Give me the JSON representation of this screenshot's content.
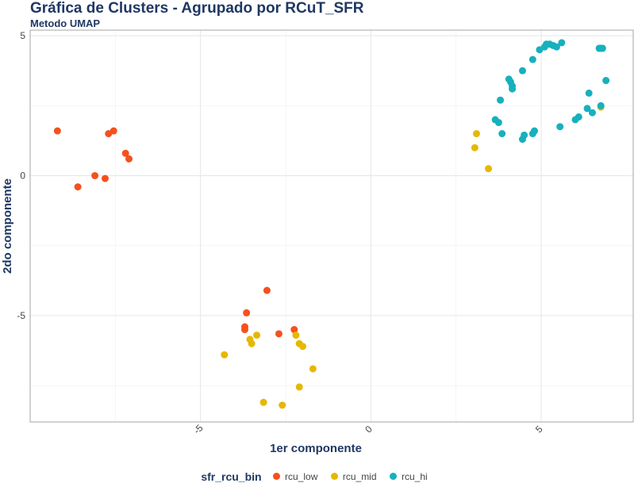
{
  "chart_data": {
    "type": "scatter",
    "title": "Gráfica de Clusters - Agrupado por RCuT_SFR",
    "subtitle": "Metodo UMAP",
    "xlabel": "1er componente",
    "ylabel": "2do componente",
    "xlim": [
      -10.0,
      7.7
    ],
    "ylim": [
      -8.8,
      5.2
    ],
    "xticks": [
      -5,
      0,
      5
    ],
    "xtick_labels": [
      "-5",
      "0",
      "5"
    ],
    "yticks": [
      -5,
      0,
      5
    ],
    "ytick_labels": [
      "-5",
      "0",
      "5"
    ],
    "grid": true,
    "legend": {
      "title": "sfr_rcu_bin",
      "position": "bottom"
    },
    "series": [
      {
        "name": "rcu_low",
        "color": "#f4511e",
        "points": [
          [
            -9.2,
            1.6
          ],
          [
            -8.6,
            -0.4
          ],
          [
            -8.1,
            0.0
          ],
          [
            -7.8,
            -0.1
          ],
          [
            -7.7,
            1.5
          ],
          [
            -7.55,
            1.6
          ],
          [
            -7.2,
            0.8
          ],
          [
            -7.1,
            0.6
          ],
          [
            -3.65,
            -4.9
          ],
          [
            -3.7,
            -5.4
          ],
          [
            -3.7,
            -5.5
          ],
          [
            -3.05,
            -4.1
          ],
          [
            -2.7,
            -5.65
          ],
          [
            -2.25,
            -5.5
          ]
        ]
      },
      {
        "name": "rcu_mid",
        "color": "#e6b800",
        "points": [
          [
            -4.3,
            -6.4
          ],
          [
            -3.55,
            -5.85
          ],
          [
            -3.5,
            -6.0
          ],
          [
            -3.35,
            -5.7
          ],
          [
            -3.15,
            -8.1
          ],
          [
            -2.6,
            -8.2
          ],
          [
            -2.2,
            -5.7
          ],
          [
            -2.1,
            -6.0
          ],
          [
            -2.0,
            -6.1
          ],
          [
            -1.7,
            -6.9
          ],
          [
            -2.1,
            -7.55
          ],
          [
            3.05,
            1.0
          ],
          [
            3.1,
            1.5
          ],
          [
            3.45,
            0.25
          ],
          [
            6.75,
            2.45
          ]
        ]
      },
      {
        "name": "rcu_hi",
        "color": "#17b0bd",
        "points": [
          [
            3.65,
            2.0
          ],
          [
            3.75,
            1.9
          ],
          [
            3.8,
            2.7
          ],
          [
            3.85,
            1.5
          ],
          [
            4.05,
            3.45
          ],
          [
            4.1,
            3.35
          ],
          [
            4.15,
            3.2
          ],
          [
            4.15,
            3.1
          ],
          [
            4.45,
            3.75
          ],
          [
            4.45,
            1.3
          ],
          [
            4.5,
            1.45
          ],
          [
            4.75,
            4.15
          ],
          [
            4.75,
            1.5
          ],
          [
            4.8,
            1.6
          ],
          [
            4.95,
            4.5
          ],
          [
            5.1,
            4.6
          ],
          [
            5.15,
            4.7
          ],
          [
            5.25,
            4.7
          ],
          [
            5.35,
            4.65
          ],
          [
            5.45,
            4.6
          ],
          [
            5.6,
            4.75
          ],
          [
            5.55,
            1.75
          ],
          [
            6.0,
            2.0
          ],
          [
            6.1,
            2.1
          ],
          [
            6.35,
            2.4
          ],
          [
            6.4,
            2.95
          ],
          [
            6.5,
            2.25
          ],
          [
            6.7,
            4.55
          ],
          [
            6.75,
            4.55
          ],
          [
            6.8,
            4.55
          ],
          [
            6.75,
            2.5
          ],
          [
            6.9,
            3.4
          ]
        ]
      }
    ]
  }
}
